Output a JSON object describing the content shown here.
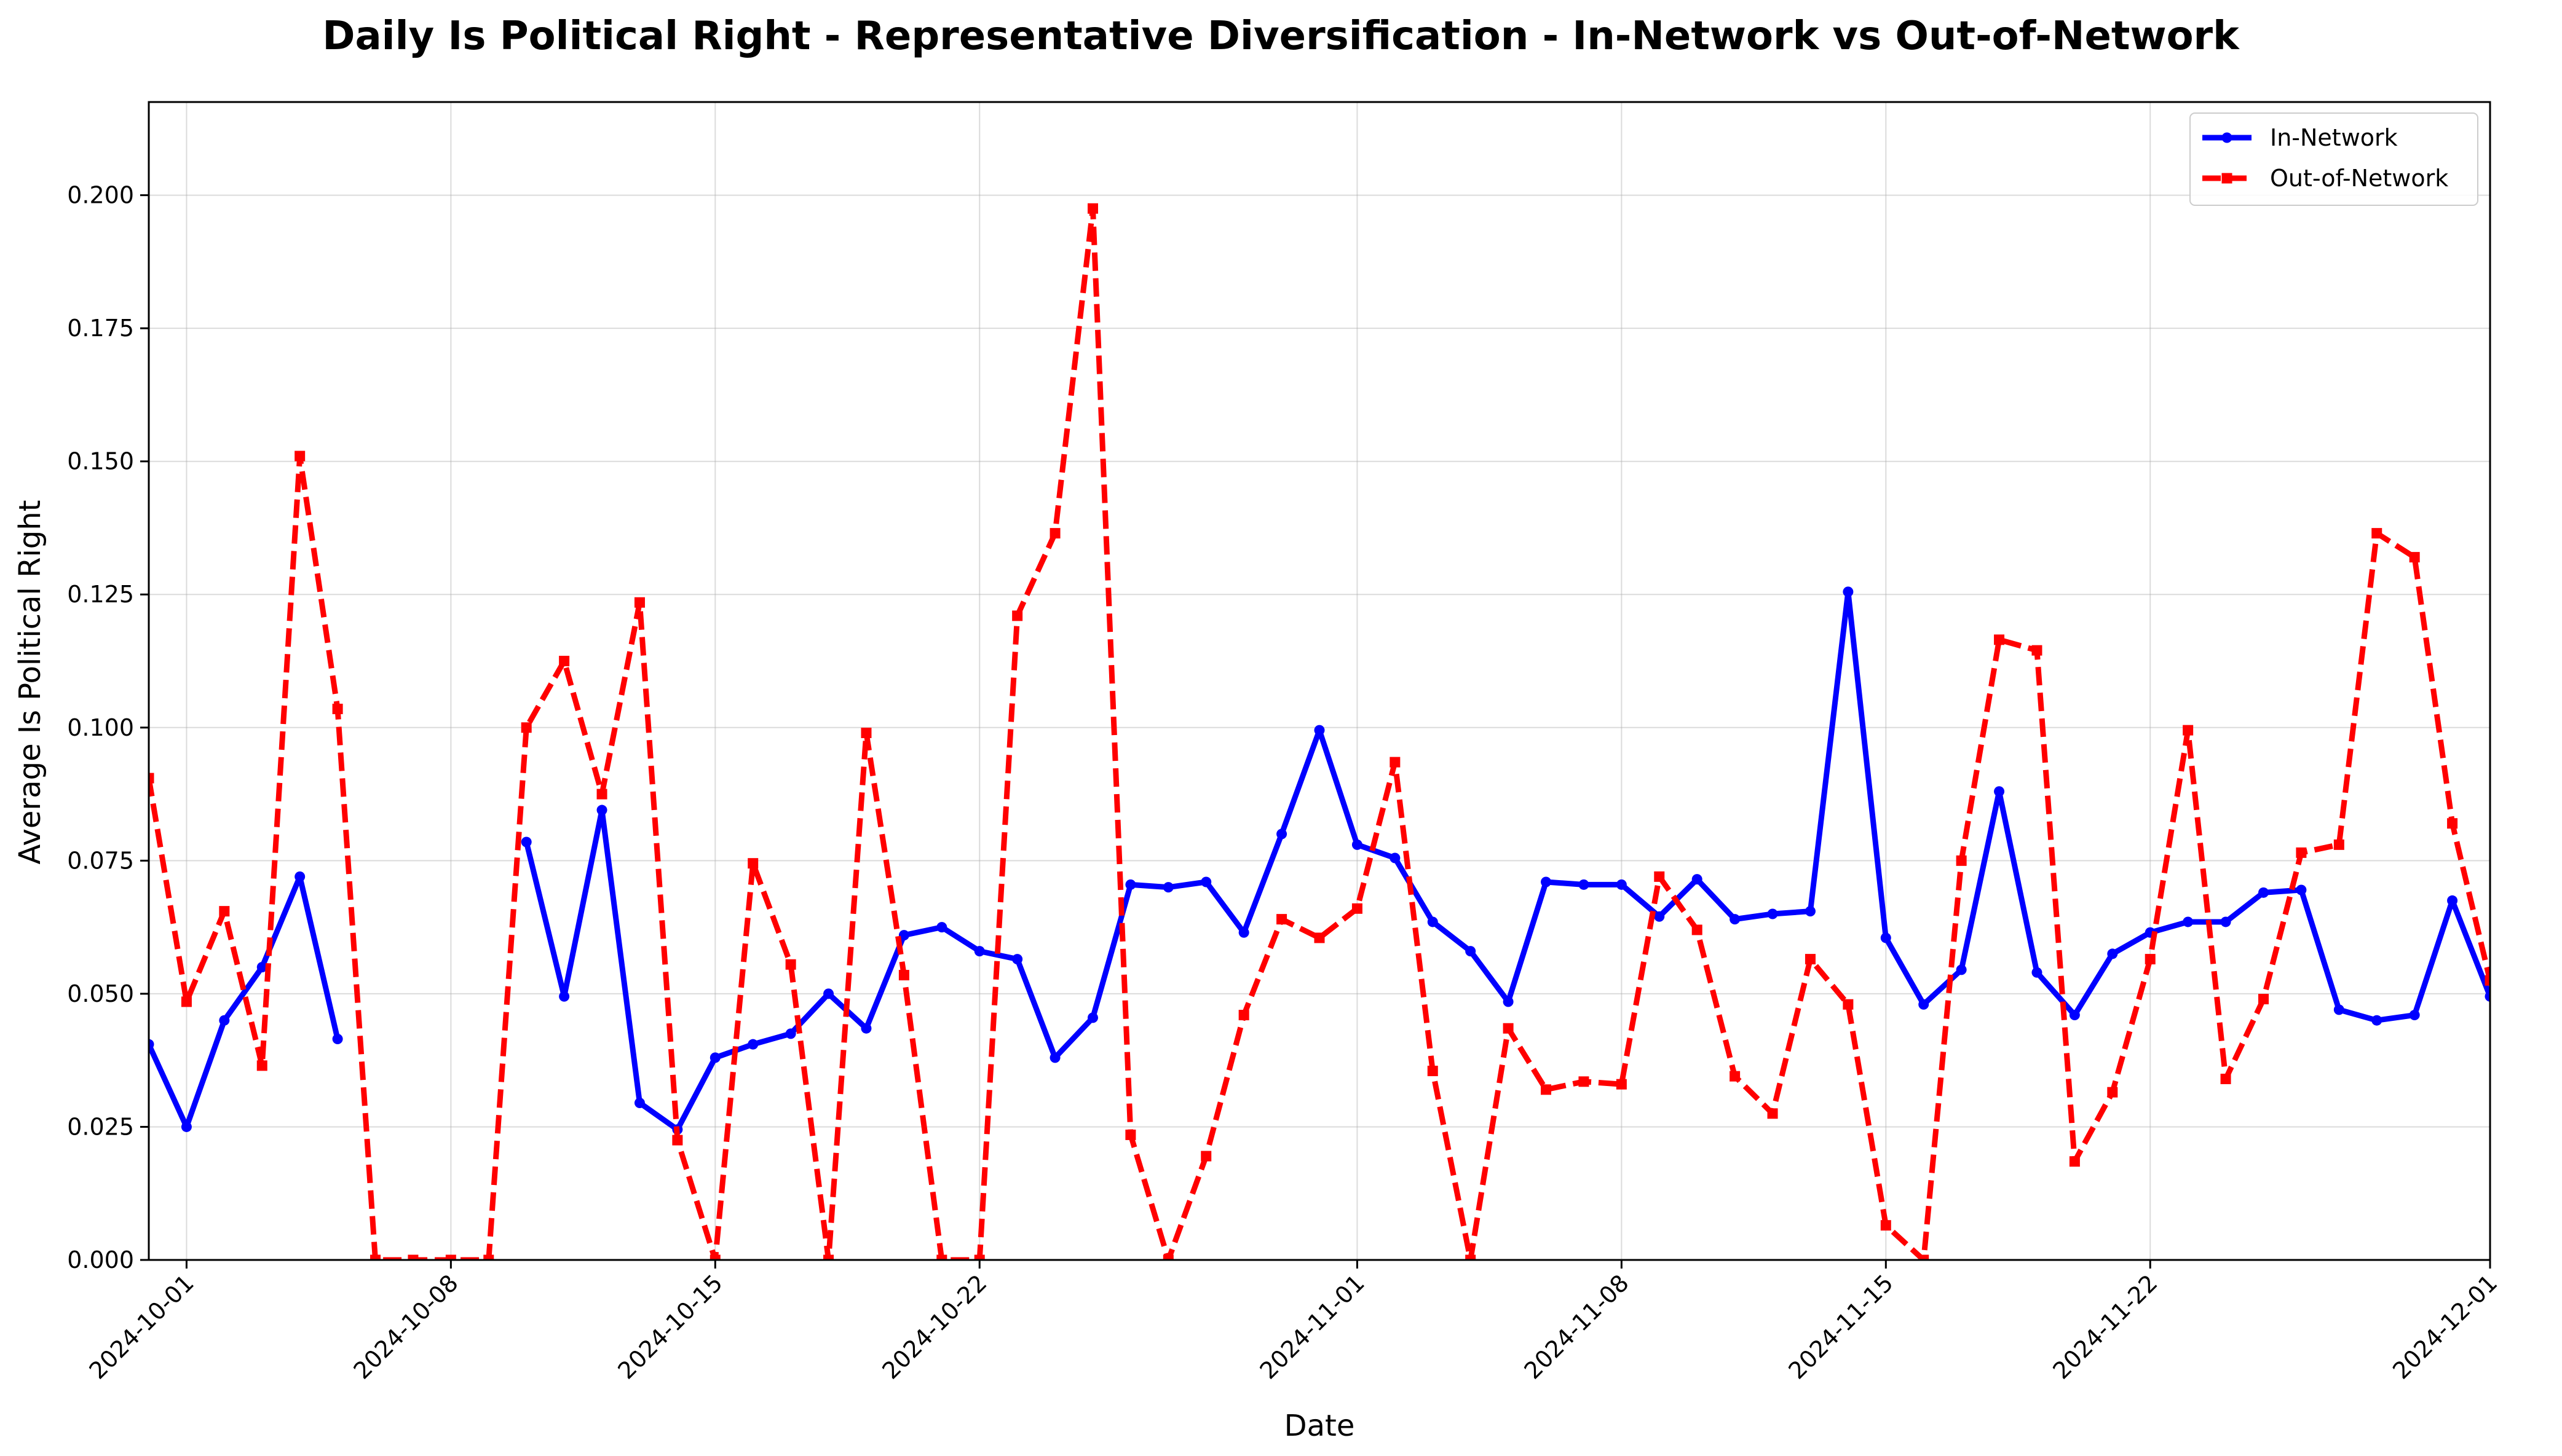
{
  "chart_data": {
    "type": "line",
    "title": "Daily Is Political Right - Representative Diversification - In-Network vs Out-of-Network",
    "xlabel": "Date",
    "ylabel": "Average Is Political Right",
    "x_start": "2024-09-30",
    "xlim": [
      "2024-09-30",
      "2024-12-01"
    ],
    "ylim": [
      0,
      0.2175
    ],
    "x_ticks": [
      "2024-10-01",
      "2024-10-08",
      "2024-10-15",
      "2024-10-22",
      "2024-11-01",
      "2024-11-08",
      "2024-11-15",
      "2024-11-22",
      "2024-12-01"
    ],
    "y_ticks": [
      "0.000",
      "0.025",
      "0.050",
      "0.075",
      "0.100",
      "0.125",
      "0.150",
      "0.175",
      "0.200"
    ],
    "grid": true,
    "legend_position": "top-right",
    "series": [
      {
        "name": "In-Network",
        "color": "#0000ff",
        "line_style": "solid",
        "marker": "circle",
        "values": [
          0.0405,
          0.025,
          0.045,
          0.055,
          0.072,
          0.0415,
          null,
          null,
          null,
          null,
          0.0785,
          0.0495,
          0.0845,
          0.0295,
          0.0245,
          0.038,
          0.0405,
          0.0425,
          0.05,
          0.0435,
          0.061,
          0.0625,
          0.058,
          0.0565,
          0.038,
          0.0455,
          0.0705,
          0.07,
          0.071,
          0.0615,
          0.08,
          0.0995,
          0.078,
          0.0755,
          0.0635,
          0.058,
          0.0485,
          0.071,
          0.0705,
          0.0705,
          0.0645,
          0.0715,
          0.064,
          0.065,
          0.0655,
          0.1255,
          0.0605,
          0.048,
          0.0545,
          0.088,
          0.054,
          0.046,
          0.0575,
          0.0615,
          0.0635,
          0.0635,
          0.069,
          0.0695,
          0.047,
          0.045,
          0.046,
          0.0675,
          0.0495
        ]
      },
      {
        "name": "Out-of-Network",
        "color": "#ff0000",
        "line_style": "dashed",
        "marker": "square",
        "values": [
          0.0905,
          0.0485,
          0.0655,
          0.0365,
          0.151,
          0.1035,
          0.0,
          0.0,
          0.0,
          0.0,
          0.1,
          0.1125,
          0.0875,
          0.1235,
          0.0225,
          0.0,
          0.0745,
          0.0555,
          0.0,
          0.099,
          0.0535,
          0.0,
          0.0,
          0.121,
          0.1365,
          0.1975,
          0.0235,
          0.0,
          0.0195,
          0.046,
          0.064,
          0.0605,
          0.066,
          0.0935,
          0.0355,
          0.0,
          0.0435,
          0.032,
          0.0335,
          0.033,
          0.072,
          0.062,
          0.0345,
          0.0275,
          0.0565,
          0.048,
          0.0065,
          0.0,
          0.075,
          0.1165,
          0.1145,
          0.0185,
          0.0315,
          0.0565,
          0.0995,
          0.034,
          0.049,
          0.0765,
          0.078,
          0.1365,
          0.132,
          0.082,
          0.0525
        ]
      }
    ]
  }
}
